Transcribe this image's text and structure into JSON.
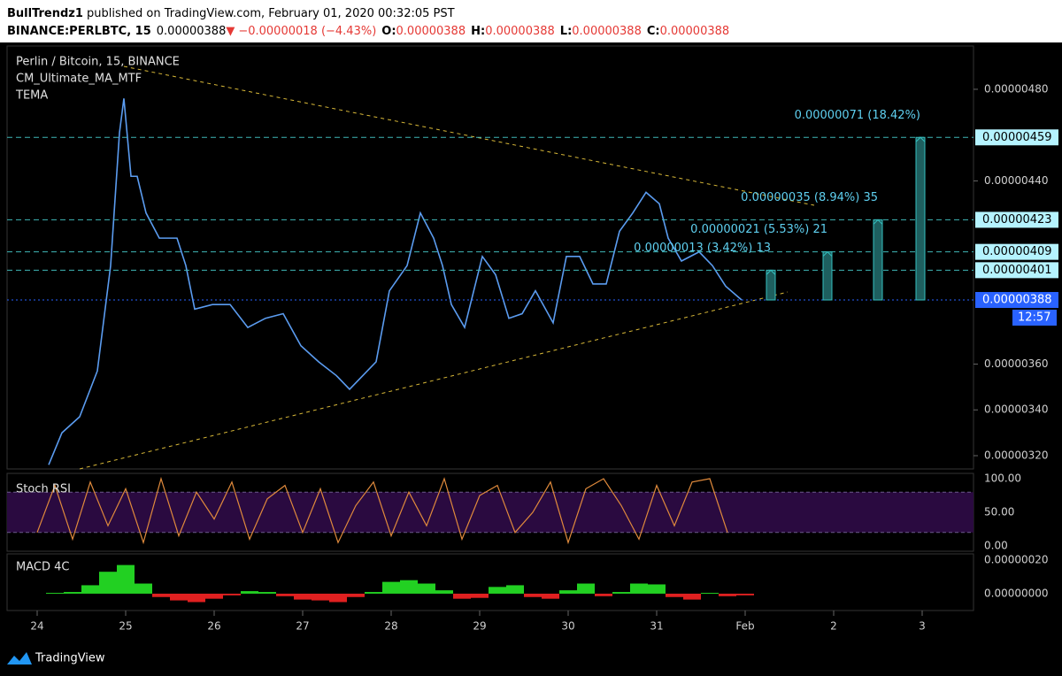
{
  "header": {
    "author": "BullTrendz1",
    "published": " published on TradingView.com, February 01, 2020 00:32:05 PST",
    "symbol": "BINANCE:PERLBTC, 15",
    "last": "0.00000388",
    "arrow": "▼",
    "change": "−0.00000018 (−4.43%)",
    "ohlc": [
      {
        "key": "O:",
        "value": "0.00000388"
      },
      {
        "key": "H:",
        "value": "0.00000388"
      },
      {
        "key": "L:",
        "value": "0.00000388"
      },
      {
        "key": "C:",
        "value": "0.00000388"
      }
    ]
  },
  "chart": {
    "title": "Perlin / Bitcoin, 15, BINANCE",
    "indicators": [
      "CM_Ultimate_MA_MTF",
      "TEMA"
    ],
    "xlim": [
      -0.34,
      10.58
    ],
    "xticks": [
      {
        "value": 0,
        "label": "24"
      },
      {
        "value": 1,
        "label": "25"
      },
      {
        "value": 2,
        "label": "26"
      },
      {
        "value": 3,
        "label": "27"
      },
      {
        "value": 4,
        "label": "28"
      },
      {
        "value": 5,
        "label": "29"
      },
      {
        "value": 6,
        "label": "30"
      },
      {
        "value": 7,
        "label": "31"
      },
      {
        "value": 8,
        "label": "Feb"
      },
      {
        "value": 9,
        "label": "2"
      },
      {
        "value": 10,
        "label": "3"
      }
    ],
    "ylim": [
      3.142e-06,
      4.989e-06
    ],
    "yticks": [
      {
        "value": 4.8e-06,
        "label": "0.00000480"
      },
      {
        "value": 4.4e-06,
        "label": "0.00000440"
      },
      {
        "value": 3.6e-06,
        "label": "0.00000360"
      },
      {
        "value": 3.4e-06,
        "label": "0.00000340"
      },
      {
        "value": 3.2e-06,
        "label": "0.00000320"
      }
    ],
    "price": {
      "color": "#5b9cf0",
      "x": [
        0.13,
        0.28,
        0.48,
        0.68,
        0.83,
        0.93,
        0.98,
        1.06,
        1.13,
        1.23,
        1.38,
        1.58,
        1.68,
        1.78,
        1.98,
        2.18,
        2.38,
        2.58,
        2.78,
        2.98,
        3.18,
        3.38,
        3.53,
        3.68,
        3.83,
        3.98,
        4.18,
        4.33,
        4.48,
        4.58,
        4.68,
        4.83,
        5.03,
        5.18,
        5.33,
        5.48,
        5.63,
        5.83,
        5.98,
        6.13,
        6.28,
        6.43,
        6.58,
        6.73,
        6.88,
        7.03,
        7.13,
        7.28,
        7.48,
        7.63,
        7.78,
        7.96
      ],
      "values": [
        3.16e-06,
        3.3e-06,
        3.37e-06,
        3.57e-06,
        4.03e-06,
        4.61e-06,
        4.76e-06,
        4.42e-06,
        4.42e-06,
        4.26e-06,
        4.15e-06,
        4.15e-06,
        4.03e-06,
        3.84e-06,
        3.86e-06,
        3.86e-06,
        3.76e-06,
        3.8e-06,
        3.82e-06,
        3.68e-06,
        3.61e-06,
        3.55e-06,
        3.49e-06,
        3.55e-06,
        3.61e-06,
        3.92e-06,
        4.03e-06,
        4.26e-06,
        4.15e-06,
        4.03e-06,
        3.86e-06,
        3.76e-06,
        4.07e-06,
        3.99e-06,
        3.8e-06,
        3.82e-06,
        3.92e-06,
        3.78e-06,
        4.07e-06,
        4.07e-06,
        3.95e-06,
        3.95e-06,
        4.18e-06,
        4.26e-06,
        4.35e-06,
        4.3e-06,
        4.15e-06,
        4.05e-06,
        4.09e-06,
        4.03e-06,
        3.94e-06,
        3.88e-06
      ]
    },
    "levels": [
      {
        "value": 4.59e-06,
        "label": "0.00000459"
      },
      {
        "value": 4.23e-06,
        "label": "0.00000423"
      },
      {
        "value": 4.09e-06,
        "label": "0.00000409"
      },
      {
        "value": 4.01e-06,
        "label": "0.00000401"
      },
      {
        "value": 3.88e-06,
        "label": "0.00000388"
      }
    ],
    "countdown": "12:57",
    "targets": [
      {
        "text": "0.00000071 (18.42%)",
        "x": 9.98
      },
      {
        "text": "0.00000035 (8.94%) 35",
        "x": 9.5
      },
      {
        "text": "0.00000021 (5.53%) 21",
        "x": 8.93
      },
      {
        "text": "0.00000013 (3.42%) 13",
        "x": 8.29
      }
    ]
  },
  "stoch": {
    "title": "Stoch RSI",
    "ylim": [
      0,
      100
    ],
    "band": [
      20,
      80
    ],
    "yticks": [
      {
        "value": 100,
        "label": "100.00"
      },
      {
        "value": 50,
        "label": "50.00"
      },
      {
        "value": 0,
        "label": "0.00"
      }
    ],
    "x": [
      0,
      0.2,
      0.4,
      0.6,
      0.8,
      1,
      1.2,
      1.4,
      1.6,
      1.8,
      2,
      2.2,
      2.4,
      2.6,
      2.8,
      3,
      3.2,
      3.4,
      3.6,
      3.8,
      4,
      4.2,
      4.4,
      4.6,
      4.8,
      5,
      5.2,
      5.4,
      5.6,
      5.8,
      6,
      6.2,
      6.4,
      6.6,
      6.8,
      7,
      7.2,
      7.4,
      7.6,
      7.8
    ],
    "values": [
      20,
      90,
      10,
      95,
      30,
      85,
      5,
      100,
      15,
      80,
      40,
      95,
      10,
      70,
      90,
      20,
      85,
      5,
      60,
      95,
      15,
      80,
      30,
      100,
      10,
      75,
      90,
      20,
      50,
      95,
      5,
      85,
      100,
      60,
      10,
      90,
      30,
      95,
      100,
      20
    ]
  },
  "macd": {
    "title": "MACD 4C",
    "ylim": [
      -1e-07,
      2.36e-07
    ],
    "yticks": [
      {
        "value": 2e-07,
        "label": "0.00000020"
      },
      {
        "value": 0,
        "label": "0.00000000"
      }
    ],
    "x": [
      0.2,
      0.4,
      0.6,
      0.8,
      1,
      1.2,
      1.4,
      1.6,
      1.8,
      2,
      2.2,
      2.4,
      2.6,
      2.8,
      3,
      3.2,
      3.4,
      3.6,
      3.8,
      4,
      4.2,
      4.4,
      4.6,
      4.8,
      5,
      5.2,
      5.4,
      5.6,
      5.8,
      6,
      6.2,
      6.4,
      6.6,
      6.8,
      7,
      7.2,
      7.4,
      7.6,
      7.8,
      8
    ],
    "values": [
      5e-09,
      1e-08,
      5e-08,
      1.3e-07,
      1.7e-07,
      6e-08,
      -2e-08,
      -4e-08,
      -5e-08,
      -3e-08,
      -1e-08,
      1.5e-08,
      1e-08,
      -1.5e-08,
      -3.5e-08,
      -4e-08,
      -5e-08,
      -2e-08,
      1e-08,
      7e-08,
      8e-08,
      6e-08,
      2e-08,
      -3e-08,
      -2.5e-08,
      4e-08,
      5e-08,
      -2e-08,
      -3e-08,
      2e-08,
      6e-08,
      -1.5e-08,
      1e-08,
      6e-08,
      5.5e-08,
      -2e-08,
      -3.5e-08,
      5e-09,
      -1.5e-08,
      -1e-08
    ]
  },
  "footer": {
    "brand": "TradingView"
  }
}
